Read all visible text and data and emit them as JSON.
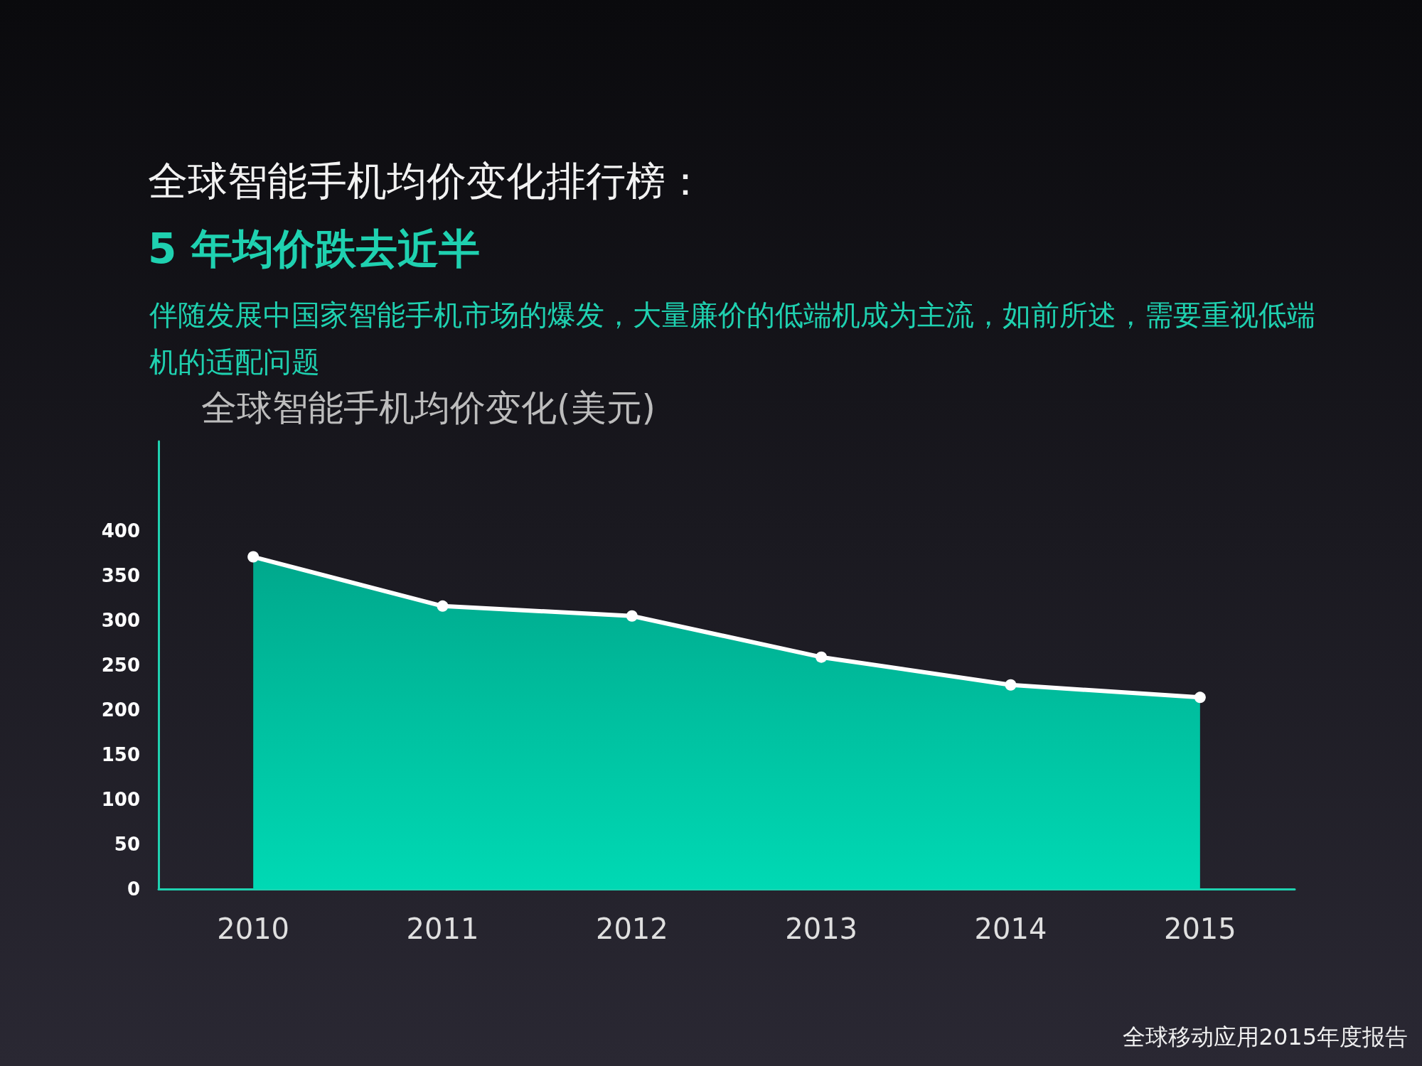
{
  "chart_data": {
    "type": "area",
    "title": "全球智能手机均价变化排行榜：",
    "subtitle": "5 年均价跌去近半",
    "ylabel": "全球智能手机均价变化(美元)",
    "annotations": [
      "伴随发展中国家智能手机市场的爆发，大量廉价的低端机成为主流，如前所述，需要重视低端机的适配问题",
      "全球移动应用2015年度报告"
    ],
    "categories": [
      "2010",
      "2011",
      "2012",
      "2013",
      "2014",
      "2015"
    ],
    "values": [
      371,
      316,
      305,
      259,
      228,
      214
    ],
    "color": "#00d9b4",
    "marker": "circle",
    "ylim": [
      0,
      500
    ],
    "yticks": [
      0,
      50,
      100,
      150,
      200,
      250,
      300,
      350,
      400
    ]
  }
}
